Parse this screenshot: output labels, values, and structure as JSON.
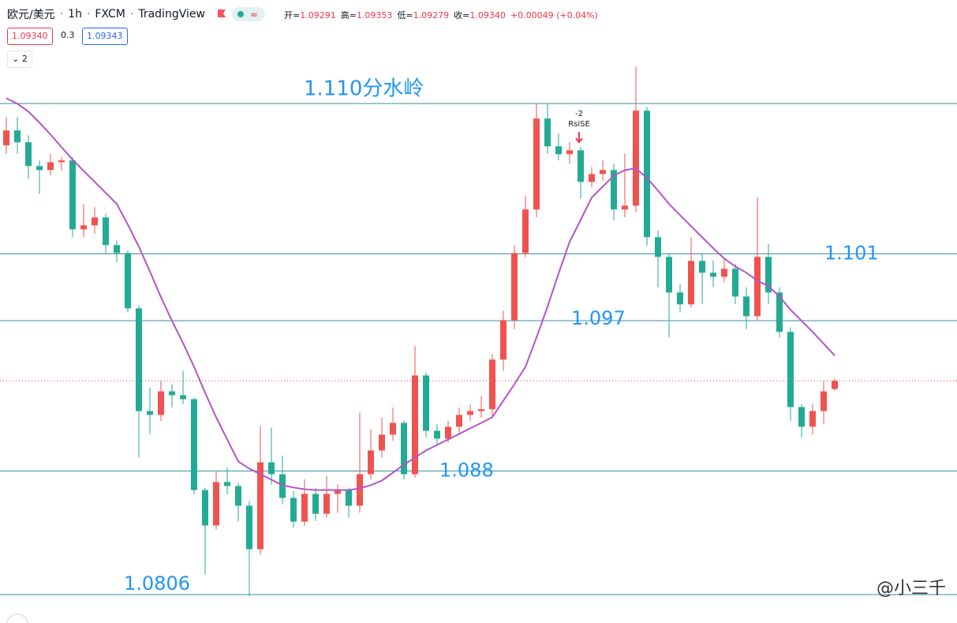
{
  "header": {
    "symbol": "欧元/美元",
    "interval": "1h",
    "exchange": "FXCM",
    "source": "TradingView",
    "ohlc": [
      {
        "label": "开=",
        "value": "1.09291"
      },
      {
        "label": "高=",
        "value": "1.09353"
      },
      {
        "label": "低=",
        "value": "1.09279"
      },
      {
        "label": "收=",
        "value": "1.09340"
      }
    ],
    "change": "+0.00049 (+0.04%)",
    "bid": "1.09340",
    "spread": "0.3",
    "ask": "1.09343",
    "indicators": 2
  },
  "watermark": "@小三千",
  "chart_data": {
    "type": "candlestick",
    "up_color": "#ef5350",
    "down_color": "#22ab94",
    "ylim": [
      1.0789,
      1.1162
    ],
    "open": [
      1.1075,
      1.10839,
      1.10768,
      1.10626,
      1.10602,
      1.10649,
      1.1066,
      1.10247,
      1.10271,
      1.10318,
      1.10153,
      1.10105,
      1.09774,
      1.09159,
      1.09136,
      1.09277,
      1.09254,
      1.0923,
      1.08686,
      1.08474,
      1.08734,
      1.0871,
      1.08592,
      1.08332,
      1.08852,
      1.08781,
      1.08639,
      1.08497,
      1.08663,
      1.08544,
      1.08663,
      1.08686,
      1.08592,
      1.08781,
      1.08923,
      1.09018,
      1.09088,
      1.08781,
      1.09372,
      1.09041,
      1.08994,
      1.09065,
      1.09136,
      1.09159,
      1.0917,
      1.09467,
      1.09703,
      1.10105,
      1.10366,
      1.1091,
      1.10744,
      1.10697,
      1.1072,
      1.10531,
      1.10578,
      1.10602,
      1.10366,
      1.10389,
      1.10957,
      1.102,
      1.10082,
      1.09869,
      1.09798,
      1.10058,
      1.09987,
      1.09963,
      1.10011,
      1.09845,
      1.09727,
      1.10082,
      1.09869,
      1.09633,
      1.09183,
      1.09065,
      1.09159,
      1.09291
    ],
    "high": [
      1.1092,
      1.1092,
      1.1081,
      1.1066,
      1.107,
      1.1068,
      1.1068,
      1.104,
      1.1038,
      1.1034,
      1.1018,
      1.1012,
      1.0979,
      1.093,
      1.0934,
      1.0932,
      1.094,
      1.0924,
      1.087,
      1.088,
      1.0882,
      1.0873,
      1.0862,
      1.0907,
      1.0906,
      1.0889,
      1.0868,
      1.0875,
      1.087,
      1.0877,
      1.0872,
      1.087,
      1.0915,
      1.0905,
      1.0912,
      1.0918,
      1.091,
      1.0955,
      1.0939,
      1.0908,
      1.091,
      1.0918,
      1.092,
      1.0925,
      1.095,
      1.0976,
      1.1015,
      1.1045,
      1.11,
      1.11,
      1.1082,
      1.1077,
      1.1074,
      1.1062,
      1.1066,
      1.1064,
      1.107,
      1.1122,
      1.1098,
      1.1024,
      1.101,
      1.0992,
      1.102,
      1.101,
      1.1006,
      1.1008,
      1.1004,
      1.099,
      1.1044,
      1.1016,
      1.099,
      1.0966,
      1.092,
      1.092,
      1.0934,
      1.09353
    ],
    "low": [
      1.107,
      1.107,
      1.1055,
      1.1046,
      1.1057,
      1.106,
      1.102,
      1.102,
      1.1022,
      1.101,
      1.1005,
      1.0975,
      1.0888,
      1.0902,
      1.091,
      1.0918,
      1.092,
      1.0866,
      1.0818,
      1.0845,
      1.0866,
      1.085,
      1.0805,
      1.083,
      1.0872,
      1.086,
      1.0846,
      1.0847,
      1.085,
      1.0852,
      1.0855,
      1.0852,
      1.0855,
      1.0875,
      1.0888,
      1.0898,
      1.0875,
      1.0876,
      1.09,
      1.0895,
      1.0897,
      1.0903,
      1.091,
      1.0912,
      1.0912,
      1.094,
      1.0965,
      1.1008,
      1.1032,
      1.107,
      1.1066,
      1.1064,
      1.1043,
      1.105,
      1.1054,
      1.103,
      1.1032,
      1.1035,
      1.1015,
      1.099,
      1.096,
      1.0975,
      1.0978,
      1.098,
      1.099,
      1.0993,
      1.098,
      1.0965,
      1.097,
      1.098,
      1.096,
      1.091,
      1.09,
      1.0902,
      1.0908,
      1.09279
    ],
    "close": [
      1.10839,
      1.10768,
      1.10626,
      1.10602,
      1.10649,
      1.1066,
      1.10247,
      1.10271,
      1.10318,
      1.10153,
      1.10105,
      1.09774,
      1.09159,
      1.09136,
      1.09277,
      1.09254,
      1.0923,
      1.08686,
      1.08474,
      1.08734,
      1.0871,
      1.08592,
      1.08332,
      1.08852,
      1.08781,
      1.08639,
      1.08497,
      1.08663,
      1.08544,
      1.08663,
      1.08686,
      1.08592,
      1.08781,
      1.08923,
      1.09018,
      1.09088,
      1.08781,
      1.09372,
      1.09041,
      1.08994,
      1.09065,
      1.09136,
      1.09159,
      1.0917,
      1.09467,
      1.09703,
      1.10105,
      1.10366,
      1.1091,
      1.10744,
      1.10697,
      1.1072,
      1.10531,
      1.10578,
      1.10602,
      1.10366,
      1.10389,
      1.10957,
      1.102,
      1.10082,
      1.09869,
      1.09798,
      1.10058,
      1.09987,
      1.09963,
      1.10011,
      1.09845,
      1.09727,
      1.10082,
      1.09869,
      1.09633,
      1.09183,
      1.09065,
      1.09159,
      1.09277,
      1.0934
    ],
    "ma": {
      "color": "#b554c8",
      "values": [
        1.11032,
        1.10999,
        1.10952,
        1.10886,
        1.10815,
        1.10739,
        1.10664,
        1.10597,
        1.10531,
        1.10465,
        1.10399,
        1.10276,
        1.10143,
        1.09995,
        1.09841,
        1.09699,
        1.09566,
        1.09424,
        1.09268,
        1.09122,
        1.08989,
        1.08857,
        1.08814,
        1.08781,
        1.08748,
        1.08715,
        1.08701,
        1.08691,
        1.08686,
        1.08686,
        1.08686,
        1.08686,
        1.08696,
        1.08715,
        1.08743,
        1.0879,
        1.08838,
        1.0888,
        1.08923,
        1.08956,
        1.08989,
        1.09022,
        1.09056,
        1.09088,
        1.09122,
        1.09221,
        1.0932,
        1.09424,
        1.09599,
        1.09784,
        1.09983,
        1.10172,
        1.10304,
        1.10437,
        1.10503,
        1.10569,
        1.10602,
        1.10612,
        1.10555,
        1.10479,
        1.10399,
        1.10332,
        1.10266,
        1.102,
        1.10134,
        1.10072,
        1.10025,
        1.09987,
        1.0994,
        1.09907,
        1.09845,
        1.09765,
        1.09699,
        1.09633,
        1.09562,
        1.09491
      ]
    },
    "levels": [
      {
        "value": 1.11,
        "label": "1.110分水岭"
      },
      1.101,
      1.097,
      1.088,
      1.0806
    ],
    "level_color": "#3a8ea6",
    "label_color": "#2196f3",
    "signal": {
      "index": 52,
      "value": -2,
      "label": "RsiSE",
      "color": "#f23645"
    }
  }
}
